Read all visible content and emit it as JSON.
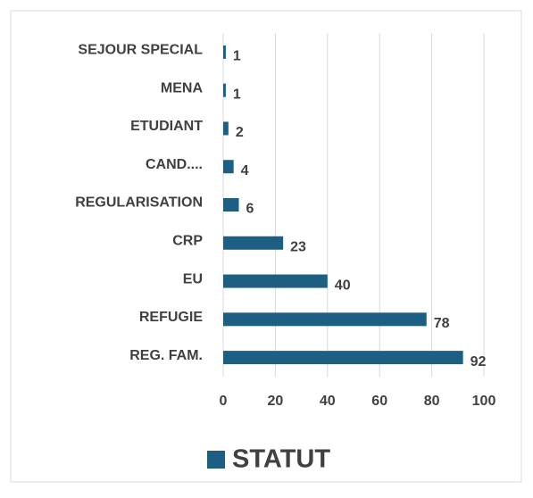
{
  "chart_data": {
    "type": "barh",
    "categories": [
      "SEJOUR SPECIAL",
      "MENA",
      "ETUDIANT",
      "CAND....",
      "REGULARISATION",
      "CRP",
      "EU",
      "REFUGIE",
      "REG. FAM."
    ],
    "series": [
      {
        "name": "STATUT",
        "color": "#1d5f82",
        "values": [
          1,
          1,
          2,
          4,
          6,
          23,
          40,
          78,
          92
        ]
      }
    ],
    "xlim": [
      0,
      100
    ],
    "xticks": [
      0,
      20,
      40,
      60,
      80,
      100
    ],
    "grid": true,
    "legend": "bottom"
  }
}
